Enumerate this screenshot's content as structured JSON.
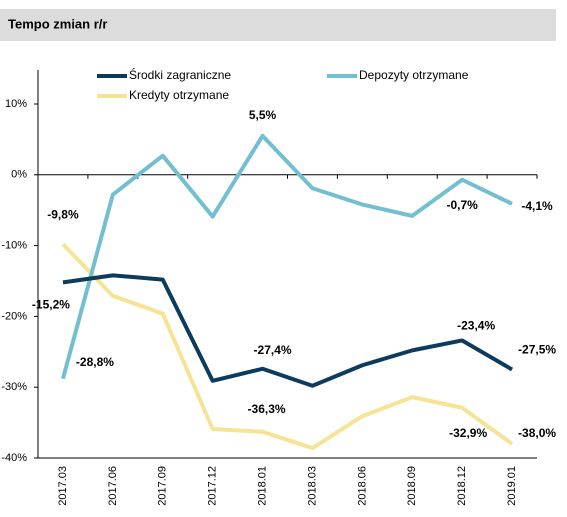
{
  "header": {
    "title": "Tempo zmian r/r"
  },
  "chart_data": {
    "type": "line",
    "categories": [
      "2017.03",
      "2017.06",
      "2017.09",
      "2017.12",
      "2018.01",
      "2018.03",
      "2018.06",
      "2018.09",
      "2018.12",
      "2019.01"
    ],
    "series": [
      {
        "name": "Środki zagraniczne",
        "color": "#0d3b5e",
        "label_color": "#1f4e79",
        "values": [
          -15.2,
          -14.2,
          -14.8,
          -29.1,
          -27.4,
          -29.8,
          -26.9,
          -24.8,
          -23.4,
          -27.5
        ],
        "value_labels": [
          "-15,2%",
          null,
          null,
          null,
          "-27,4%",
          null,
          null,
          null,
          "-23,4%",
          "-27,5%"
        ]
      },
      {
        "name": "Depozyty otrzymane",
        "color": "#72bfd1",
        "label_color": "#2a9a96",
        "values": [
          -28.8,
          -2.8,
          2.7,
          -5.9,
          5.5,
          -1.9,
          -4.2,
          -5.8,
          -0.7,
          -4.1
        ],
        "value_labels": [
          "-28,8%",
          null,
          null,
          null,
          "5,5%",
          null,
          null,
          null,
          "-0,7%",
          "-4,1%"
        ]
      },
      {
        "name": "Kredyty otrzymane",
        "color": "#f7e394",
        "label_color": "#000000",
        "values": [
          -9.8,
          -17.1,
          -19.6,
          -35.9,
          -36.3,
          -38.6,
          -34.1,
          -31.4,
          -32.9,
          -38.0
        ],
        "value_labels": [
          "-9,8%",
          null,
          null,
          null,
          "-36,3%",
          null,
          null,
          null,
          "-32,9%",
          "-38,0%"
        ]
      }
    ],
    "ylim": [
      -40,
      10
    ],
    "yticks": [
      {
        "value": 10,
        "label": "10%"
      },
      {
        "value": 0,
        "label": "0%"
      },
      {
        "value": -10,
        "label": "-10%"
      },
      {
        "value": -20,
        "label": "-20%"
      },
      {
        "value": -30,
        "label": "-30%"
      },
      {
        "value": -40,
        "label": "-40%"
      }
    ],
    "legend": "top"
  }
}
